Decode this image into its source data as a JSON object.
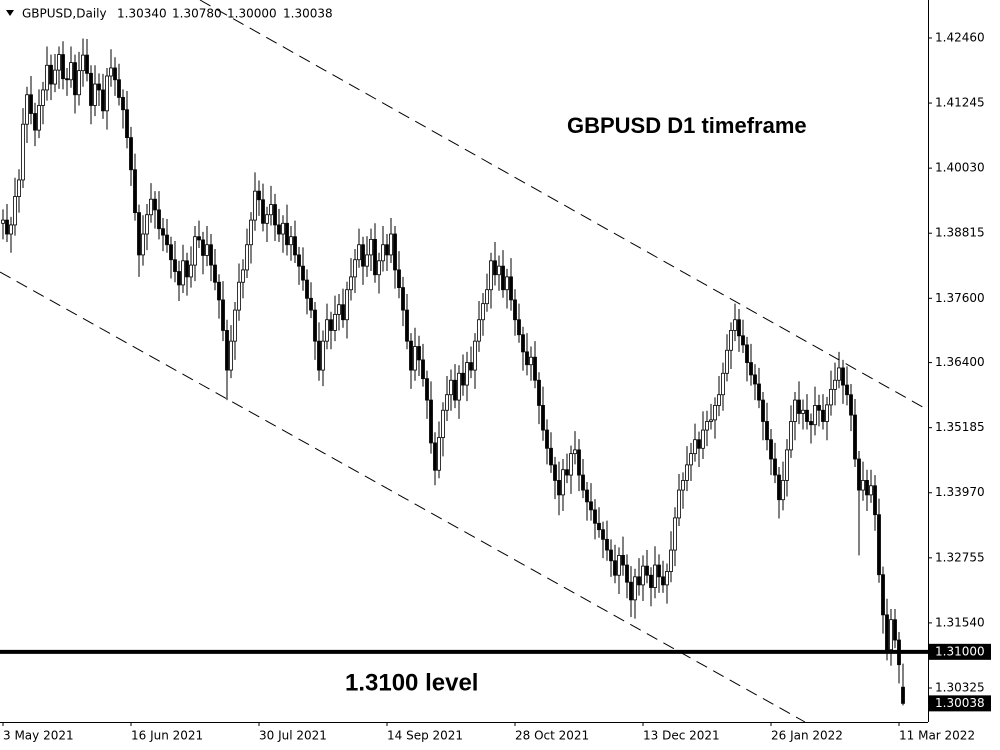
{
  "chart_data": {
    "type": "candlestick",
    "symbol": "GBPUSD,Daily",
    "last_bar_labels": [
      "1.30340",
      "1.30780",
      "1.30000",
      "1.30038"
    ],
    "annotations": [
      "GBPUSD D1 timeframe",
      "1.3100 level"
    ],
    "levels": [
      {
        "value": 1.31,
        "label": "1.31000"
      }
    ],
    "ylim": [
      1.2969,
      1.43169
    ],
    "yticks": [
      {
        "value": 1.4246,
        "label": "1.42460"
      },
      {
        "value": 1.41245,
        "label": "1.41245"
      },
      {
        "value": 1.4003,
        "label": "1.40030"
      },
      {
        "value": 1.38815,
        "label": "1.38815"
      },
      {
        "value": 1.376,
        "label": "1.37600"
      },
      {
        "value": 1.364,
        "label": "1.36400"
      },
      {
        "value": 1.35185,
        "label": "1.35185"
      },
      {
        "value": 1.3397,
        "label": "1.33970"
      },
      {
        "value": 1.32755,
        "label": "1.32755"
      },
      {
        "value": 1.3154,
        "label": "1.31540"
      },
      {
        "value": 1.30325,
        "label": "1.30325"
      }
    ],
    "categories": [
      "3 May 2021",
      null,
      null,
      null,
      null,
      null,
      null,
      null,
      null,
      null,
      null,
      null,
      null,
      null,
      null,
      null,
      null,
      null,
      null,
      null,
      null,
      null,
      null,
      null,
      null,
      null,
      null,
      null,
      null,
      null,
      null,
      null,
      "16 Jun 2021",
      null,
      null,
      null,
      null,
      null,
      null,
      null,
      null,
      null,
      null,
      null,
      null,
      null,
      null,
      null,
      null,
      null,
      null,
      null,
      null,
      null,
      null,
      null,
      null,
      null,
      null,
      null,
      null,
      null,
      null,
      null,
      "30 Jul 2021",
      null,
      null,
      null,
      null,
      null,
      null,
      null,
      null,
      null,
      null,
      null,
      null,
      null,
      null,
      null,
      null,
      null,
      null,
      null,
      null,
      null,
      null,
      null,
      null,
      null,
      null,
      null,
      null,
      null,
      null,
      null,
      "14 Sep 2021",
      null,
      null,
      null,
      null,
      null,
      null,
      null,
      null,
      null,
      null,
      null,
      null,
      null,
      null,
      null,
      null,
      null,
      null,
      null,
      null,
      null,
      null,
      null,
      null,
      null,
      null,
      null,
      null,
      null,
      null,
      null,
      "28 Oct 2021",
      null,
      null,
      null,
      null,
      null,
      null,
      null,
      null,
      null,
      null,
      null,
      null,
      null,
      null,
      null,
      null,
      null,
      null,
      null,
      null,
      null,
      null,
      null,
      null,
      null,
      null,
      null,
      null,
      null,
      null,
      null,
      "13 Dec 2021",
      null,
      null,
      null,
      null,
      null,
      null,
      null,
      null,
      null,
      null,
      null,
      null,
      null,
      null,
      null,
      null,
      null,
      null,
      null,
      null,
      null,
      null,
      null,
      null,
      null,
      null,
      null,
      null,
      null,
      null,
      null,
      "26 Jan 2022",
      null,
      null,
      null,
      null,
      null,
      null,
      null,
      null,
      null,
      null,
      null,
      null,
      null,
      null,
      null,
      null,
      null,
      null,
      null,
      null,
      null,
      null,
      null,
      null,
      null,
      null,
      null,
      null,
      null,
      null,
      null,
      "11 Mar 2022",
      null
    ],
    "open": [
      1.39,
      1.3906,
      1.388,
      1.3897,
      1.395,
      1.3981,
      1.4085,
      1.414,
      1.4105,
      1.4074,
      1.412,
      1.4149,
      1.4195,
      1.416,
      1.4186,
      1.4215,
      1.417,
      1.4168,
      1.42,
      1.414,
      1.4185,
      1.4214,
      1.418,
      1.412,
      1.416,
      1.4149,
      1.411,
      1.4175,
      1.419,
      1.4168,
      1.4135,
      1.4112,
      1.406,
      1.4,
      1.392,
      1.3841,
      1.388,
      1.3916,
      1.3945,
      1.3925,
      1.389,
      1.3878,
      1.386,
      1.3832,
      1.381,
      1.3785,
      1.383,
      1.38,
      1.3822,
      1.3875,
      1.3869,
      1.384,
      1.386,
      1.3822,
      1.379,
      1.3757,
      1.37,
      1.3626,
      1.368,
      1.3738,
      1.379,
      1.3813,
      1.386,
      1.3906,
      1.396,
      1.3944,
      1.39,
      1.3916,
      1.3935,
      1.3897,
      1.388,
      1.39,
      1.386,
      1.3875,
      1.3841,
      1.382,
      1.3794,
      1.376,
      1.3738,
      1.368,
      1.3626,
      1.368,
      1.372,
      1.37,
      1.373,
      1.3748,
      1.372,
      1.3776,
      1.38,
      1.3832,
      1.386,
      1.382,
      1.3841,
      1.387,
      1.3804,
      1.383,
      1.386,
      1.3841,
      1.388,
      1.3813,
      1.378,
      1.3738,
      1.368,
      1.3626,
      1.367,
      1.3645,
      1.361,
      1.357,
      1.349,
      1.3439,
      1.35,
      1.3551,
      1.358,
      1.3607,
      1.357,
      1.362,
      1.3598,
      1.364,
      1.3626,
      1.368,
      1.372,
      1.375,
      1.3776,
      1.383,
      1.3804,
      1.382,
      1.3776,
      1.38,
      1.3757,
      1.372,
      1.3692,
      1.366,
      1.3636,
      1.365,
      1.3607,
      1.356,
      1.3514,
      1.348,
      1.3449,
      1.342,
      1.3393,
      1.344,
      1.343,
      1.347,
      1.3477,
      1.343,
      1.3402,
      1.338,
      1.3365,
      1.334,
      1.3328,
      1.331,
      1.329,
      1.327,
      1.3243,
      1.328,
      1.3262,
      1.323,
      1.3197,
      1.324,
      1.3225,
      1.326,
      1.3243,
      1.322,
      1.3262,
      1.324,
      1.3225,
      1.325,
      1.329,
      1.335,
      1.3402,
      1.342,
      1.3449,
      1.347,
      1.3496,
      1.348,
      1.3514,
      1.353,
      1.3533,
      1.356,
      1.358,
      1.362,
      1.3663,
      1.37,
      1.372,
      1.369,
      1.3673,
      1.364,
      1.3617,
      1.36,
      1.357,
      1.353,
      1.3496,
      1.346,
      1.343,
      1.3384,
      1.342,
      1.3477,
      1.353,
      1.357,
      1.3545,
      1.3551,
      1.353,
      1.3524,
      1.356,
      1.3551,
      1.353,
      1.3561,
      1.359,
      1.3607,
      1.363,
      1.3598,
      1.358,
      1.3542,
      1.346,
      1.3402,
      1.342,
      1.3393,
      1.341,
      1.3356,
      1.3244,
      1.3169,
      1.3104,
      1.316,
      1.3122,
      1.3034
    ],
    "high": [
      1.3926,
      1.3936,
      1.3912,
      1.3985,
      1.4001,
      1.4115,
      1.4155,
      1.4175,
      1.4125,
      1.415,
      1.4164,
      1.423,
      1.4215,
      1.4216,
      1.423,
      1.424,
      1.419,
      1.423,
      1.4215,
      1.422,
      1.4245,
      1.4244,
      1.4195,
      1.4195,
      1.418,
      1.4179,
      1.419,
      1.4225,
      1.421,
      1.4198,
      1.415,
      1.4147,
      1.408,
      1.403,
      1.3935,
      1.3915,
      1.3936,
      1.3975,
      1.396,
      1.396,
      1.391,
      1.3908,
      1.3875,
      1.3867,
      1.383,
      1.386,
      1.3845,
      1.3857,
      1.3895,
      1.3905,
      1.3884,
      1.3895,
      1.388,
      1.3852,
      1.3805,
      1.3792,
      1.372,
      1.371,
      1.3753,
      1.3825,
      1.3833,
      1.389,
      1.3921,
      1.3995,
      1.398,
      1.3974,
      1.3931,
      1.397,
      1.3955,
      1.3927,
      1.3915,
      1.3935,
      1.3895,
      1.3905,
      1.3856,
      1.3855,
      1.3814,
      1.379,
      1.3753,
      1.3715,
      1.37,
      1.375,
      1.3735,
      1.3765,
      1.3768,
      1.3778,
      1.3791,
      1.3835,
      1.3852,
      1.389,
      1.3875,
      1.3876,
      1.389,
      1.39,
      1.3845,
      1.3895,
      1.388,
      1.391,
      1.3895,
      1.3848,
      1.38,
      1.3768,
      1.3695,
      1.3705,
      1.369,
      1.3675,
      1.3625,
      1.3605,
      1.351,
      1.353,
      1.3566,
      1.3615,
      1.3627,
      1.3637,
      1.3635,
      1.3655,
      1.366,
      1.367,
      1.3695,
      1.3755,
      1.377,
      1.3806,
      1.3845,
      1.3865,
      1.384,
      1.385,
      1.3815,
      1.3835,
      1.3777,
      1.375,
      1.3707,
      1.3695,
      1.367,
      1.368,
      1.3622,
      1.3595,
      1.3534,
      1.351,
      1.3464,
      1.3455,
      1.346,
      1.347,
      1.3485,
      1.3512,
      1.3497,
      1.346,
      1.3417,
      1.3415,
      1.3385,
      1.337,
      1.3343,
      1.3345,
      1.331,
      1.33,
      1.3295,
      1.3315,
      1.3282,
      1.326,
      1.3255,
      1.3275,
      1.328,
      1.329,
      1.3258,
      1.3297,
      1.3282,
      1.327,
      1.3265,
      1.3325,
      1.337,
      1.3432,
      1.3435,
      1.3484,
      1.349,
      1.3526,
      1.3511,
      1.3549,
      1.355,
      1.3563,
      1.3575,
      1.3615,
      1.364,
      1.3693,
      1.3715,
      1.375,
      1.374,
      1.372,
      1.3688,
      1.3675,
      1.3637,
      1.363,
      1.3585,
      1.3565,
      1.3516,
      1.349,
      1.3445,
      1.3455,
      1.3497,
      1.356,
      1.3585,
      1.3605,
      1.3571,
      1.3581,
      1.3545,
      1.3595,
      1.358,
      1.3581,
      1.3576,
      1.3625,
      1.364,
      1.366,
      1.3645,
      1.3633,
      1.36,
      1.3572,
      1.3475,
      1.3455,
      1.344,
      1.344,
      1.343,
      1.3386,
      1.3259,
      1.3199,
      1.318,
      1.318,
      1.3137,
      1.3078
    ],
    "low": [
      1.387,
      1.3865,
      1.3845,
      1.3877,
      1.392,
      1.3966,
      1.405,
      1.4085,
      1.4044,
      1.4059,
      1.4085,
      1.4129,
      1.413,
      1.4145,
      1.4151,
      1.415,
      1.4138,
      1.4153,
      1.4105,
      1.412,
      1.4155,
      1.4165,
      1.4085,
      1.41,
      1.4119,
      1.4095,
      1.4075,
      1.4155,
      1.4138,
      1.412,
      1.4077,
      1.404,
      1.397,
      1.3905,
      1.38,
      1.3821,
      1.385,
      1.3901,
      1.389,
      1.387,
      1.3848,
      1.3845,
      1.3797,
      1.379,
      1.3755,
      1.377,
      1.3765,
      1.378,
      1.3792,
      1.3854,
      1.3805,
      1.382,
      1.3792,
      1.3775,
      1.3722,
      1.368,
      1.357,
      1.3611,
      1.3645,
      1.3718,
      1.376,
      1.3798,
      1.3825,
      1.3886,
      1.3914,
      1.3885,
      1.3865,
      1.3896,
      1.3867,
      1.3865,
      1.3845,
      1.384,
      1.383,
      1.3826,
      1.3785,
      1.3774,
      1.373,
      1.3723,
      1.3645,
      1.3606,
      1.3596,
      1.3665,
      1.3665,
      1.368,
      1.37,
      1.3705,
      1.3685,
      1.3756,
      1.377,
      1.3817,
      1.3785,
      1.38,
      1.3811,
      1.3789,
      1.3769,
      1.381,
      1.3811,
      1.3826,
      1.3778,
      1.376,
      1.3708,
      1.3665,
      1.3591,
      1.3606,
      1.3615,
      1.3595,
      1.3535,
      1.347,
      1.3411,
      1.3424,
      1.3465,
      1.3531,
      1.355,
      1.3555,
      1.3535,
      1.3578,
      1.3568,
      1.3611,
      1.3591,
      1.366,
      1.369,
      1.3735,
      1.3741,
      1.3784,
      1.3774,
      1.3761,
      1.3741,
      1.3737,
      1.369,
      1.3677,
      1.3625,
      1.3616,
      1.3606,
      1.3592,
      1.3525,
      1.3494,
      1.345,
      1.3434,
      1.3385,
      1.3355,
      1.3363,
      1.3415,
      1.3395,
      1.345,
      1.34,
      1.3387,
      1.3345,
      1.3345,
      1.331,
      1.3313,
      1.3275,
      1.327,
      1.324,
      1.3228,
      1.3208,
      1.3242,
      1.32,
      1.3165,
      1.3162,
      1.3205,
      1.3195,
      1.3228,
      1.3185,
      1.32,
      1.321,
      1.321,
      1.319,
      1.323,
      1.326,
      1.3335,
      1.3367,
      1.34,
      1.3419,
      1.3455,
      1.3445,
      1.346,
      1.3484,
      1.3515,
      1.3498,
      1.354,
      1.355,
      1.3605,
      1.3628,
      1.368,
      1.366,
      1.3658,
      1.3605,
      1.3597,
      1.357,
      1.3555,
      1.3495,
      1.3476,
      1.343,
      1.3415,
      1.3349,
      1.3364,
      1.339,
      1.3462,
      1.3495,
      1.3525,
      1.3515,
      1.3515,
      1.3489,
      1.3504,
      1.3521,
      1.3515,
      1.3495,
      1.3541,
      1.356,
      1.3592,
      1.3563,
      1.356,
      1.3512,
      1.3445,
      1.328,
      1.3382,
      1.3363,
      1.3378,
      1.3326,
      1.3229,
      1.3134,
      1.3084,
      1.3074,
      1.3107,
      1.3041,
      1.3
    ],
    "close": [
      1.3906,
      1.388,
      1.3897,
      1.395,
      1.3981,
      1.4085,
      1.414,
      1.4105,
      1.4074,
      1.412,
      1.4149,
      1.4195,
      1.416,
      1.4186,
      1.4215,
      1.417,
      1.4168,
      1.42,
      1.414,
      1.4185,
      1.4214,
      1.418,
      1.412,
      1.416,
      1.4149,
      1.411,
      1.4175,
      1.419,
      1.4168,
      1.4135,
      1.4112,
      1.406,
      1.4,
      1.392,
      1.3841,
      1.388,
      1.3916,
      1.3945,
      1.3925,
      1.389,
      1.3878,
      1.386,
      1.3832,
      1.381,
      1.3785,
      1.383,
      1.38,
      1.3822,
      1.3875,
      1.3869,
      1.384,
      1.386,
      1.3822,
      1.379,
      1.3757,
      1.37,
      1.3626,
      1.368,
      1.3738,
      1.379,
      1.3813,
      1.386,
      1.3906,
      1.396,
      1.3944,
      1.39,
      1.3916,
      1.3935,
      1.3897,
      1.388,
      1.39,
      1.386,
      1.3875,
      1.3841,
      1.382,
      1.3794,
      1.376,
      1.3738,
      1.368,
      1.3626,
      1.368,
      1.372,
      1.37,
      1.373,
      1.3748,
      1.372,
      1.3776,
      1.38,
      1.3832,
      1.386,
      1.382,
      1.3841,
      1.387,
      1.3804,
      1.383,
      1.386,
      1.3841,
      1.388,
      1.3813,
      1.378,
      1.3738,
      1.368,
      1.3626,
      1.367,
      1.3645,
      1.361,
      1.357,
      1.349,
      1.3439,
      1.35,
      1.3551,
      1.358,
      1.3607,
      1.357,
      1.362,
      1.3598,
      1.364,
      1.3626,
      1.368,
      1.372,
      1.375,
      1.3776,
      1.383,
      1.3804,
      1.382,
      1.3776,
      1.38,
      1.3757,
      1.372,
      1.3692,
      1.366,
      1.3636,
      1.365,
      1.3607,
      1.356,
      1.3514,
      1.348,
      1.3449,
      1.342,
      1.3393,
      1.344,
      1.343,
      1.347,
      1.3477,
      1.343,
      1.3402,
      1.338,
      1.3365,
      1.334,
      1.3328,
      1.331,
      1.329,
      1.327,
      1.3243,
      1.328,
      1.3262,
      1.323,
      1.3197,
      1.324,
      1.3225,
      1.326,
      1.3243,
      1.322,
      1.3262,
      1.324,
      1.3225,
      1.325,
      1.329,
      1.335,
      1.3402,
      1.342,
      1.3449,
      1.347,
      1.3496,
      1.348,
      1.3514,
      1.353,
      1.3533,
      1.356,
      1.358,
      1.362,
      1.3663,
      1.37,
      1.372,
      1.369,
      1.3673,
      1.364,
      1.3617,
      1.36,
      1.357,
      1.353,
      1.3496,
      1.346,
      1.343,
      1.3384,
      1.342,
      1.3477,
      1.353,
      1.357,
      1.3545,
      1.3551,
      1.353,
      1.3524,
      1.356,
      1.3551,
      1.353,
      1.3561,
      1.359,
      1.3607,
      1.363,
      1.3598,
      1.358,
      1.3542,
      1.346,
      1.3402,
      1.342,
      1.3393,
      1.341,
      1.3356,
      1.3244,
      1.3169,
      1.3104,
      1.316,
      1.3122,
      1.3076,
      1.30038
    ]
  }
}
